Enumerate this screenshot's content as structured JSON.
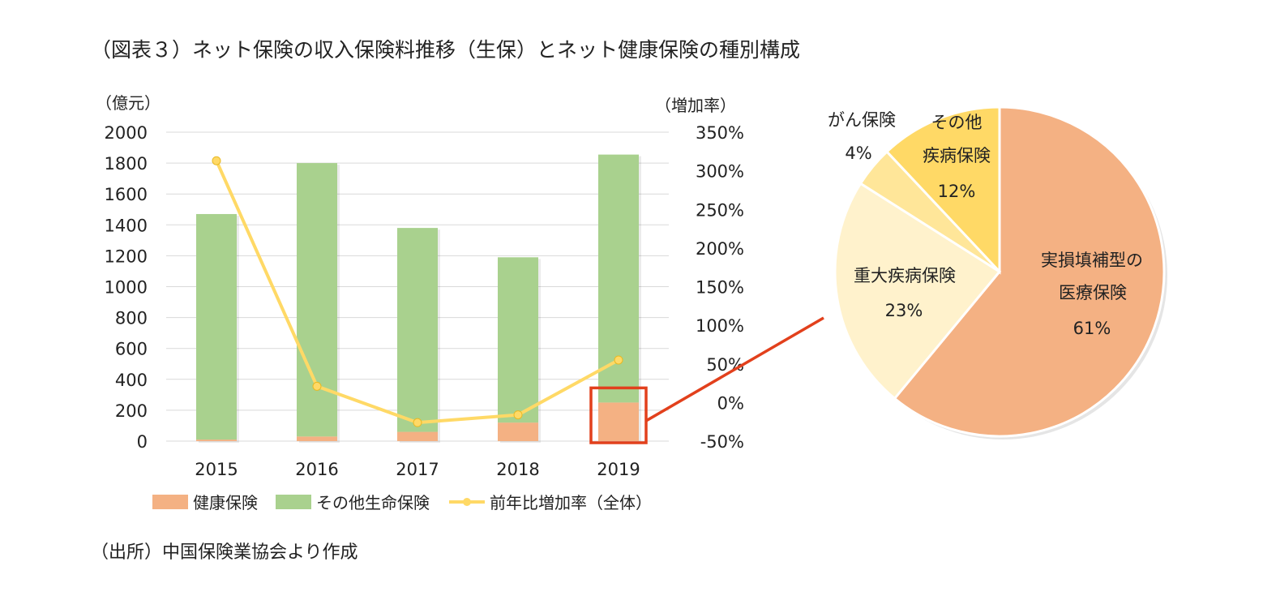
{
  "title": "（図表３）ネット保険の収入保険料推移（生保）とネット健康保険の種別構成",
  "source": "（出所）中国保険業協会より作成",
  "colors": {
    "health": "#F4B183",
    "other_life": "#A9D18E",
    "growth_line": "#FFD966",
    "highlight_box": "#E2401C",
    "pie_medical": "#F4B183",
    "pie_critical": "#FFF2CC",
    "pie_cancer": "#FFE699",
    "pie_other_disease": "#FFD966"
  },
  "chart_data": [
    {
      "type": "bar",
      "stacked": true,
      "ylabel": "（億元）",
      "y2label": "（増加率）",
      "categories": [
        "2015",
        "2016",
        "2017",
        "2018",
        "2019"
      ],
      "ylim": [
        0,
        2000
      ],
      "yticks": [
        "0",
        "200",
        "400",
        "600",
        "800",
        "1000",
        "1200",
        "1400",
        "1600",
        "1800",
        "2000"
      ],
      "y2lim": [
        -50,
        350
      ],
      "y2ticks": [
        "-50%",
        "0%",
        "50%",
        "100%",
        "150%",
        "200%",
        "250%",
        "300%",
        "350%"
      ],
      "series": [
        {
          "name": "健康保険",
          "values": [
            10,
            30,
            60,
            120,
            250
          ]
        },
        {
          "name": "その他生命保険",
          "values": [
            1460,
            1770,
            1320,
            1070,
            1605
          ]
        },
        {
          "name": "前年比増加率（全体）",
          "type": "line",
          "axis": "secondary",
          "values": [
            313,
            21,
            -26,
            -16,
            55
          ]
        }
      ],
      "highlight_category": "2019",
      "legend": "bottom"
    },
    {
      "type": "pie",
      "slices": [
        {
          "label": "実損填補型の医療保険",
          "value": 61,
          "value_label": "61%"
        },
        {
          "label": "重大疾病保険",
          "value": 23,
          "value_label": "23%"
        },
        {
          "label": "がん保険",
          "value": 4,
          "value_label": "4%"
        },
        {
          "label": "その他疾病保険",
          "value": 12,
          "value_label": "12%"
        }
      ]
    }
  ]
}
